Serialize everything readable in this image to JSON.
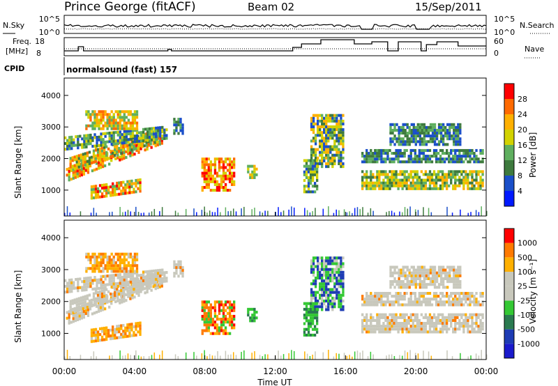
{
  "header": {
    "title": "Prince George (fitACF)",
    "beam": "Beam 02",
    "date": "15/Sep/2011"
  },
  "noise_panel": {
    "left_label": "N.Sky",
    "right_label": "N.Search",
    "left_ticks": [
      "10^5",
      "10^0"
    ],
    "right_ticks": [
      "10^5",
      "10^0"
    ]
  },
  "freq_panel": {
    "left_label_1": "Freq.",
    "left_label_2": "[MHz]",
    "left_ticks": [
      "18",
      "8"
    ],
    "right_label": "Nave",
    "right_ticks": [
      "60",
      "0"
    ]
  },
  "cpid": {
    "label": "CPID",
    "value": "normalsound (fast) 157"
  },
  "colors": {
    "power": [
      "#0019ff",
      "#1a4fc9",
      "#3e7a3e",
      "#5faf5f",
      "#d2d200",
      "#ffb000",
      "#ff6a00",
      "#ff0000"
    ],
    "velocity": [
      "#ff0000",
      "#ff7a00",
      "#ffb000",
      "#c8c8bc",
      "#c8c8bc",
      "#34c834",
      "#2a7a50",
      "#1e3cb4",
      "#1a1acc"
    ]
  },
  "chart_data": [
    {
      "type": "heatmap",
      "name": "power",
      "xlabel": "",
      "ylabel": "Slant Range [km]",
      "x_ticks": [
        "00:00",
        "04:00",
        "08:00",
        "12:00",
        "16:00",
        "20:00",
        "00:00"
      ],
      "y_ticks": [
        "1000",
        "2000",
        "3000",
        "4000"
      ],
      "colorbar_label": "Power [dB]",
      "colorbar_ticks": [
        "4",
        "8",
        "12",
        "16",
        "20",
        "24",
        "28"
      ],
      "xlim": [
        0,
        24
      ],
      "ylim": [
        180,
        4550
      ]
    },
    {
      "type": "heatmap",
      "name": "velocity",
      "xlabel": "Time UT",
      "ylabel": "Slant Range [km]",
      "x_ticks": [
        "00:00",
        "04:00",
        "08:00",
        "12:00",
        "16:00",
        "20:00",
        "00:00"
      ],
      "y_ticks": [
        "1000",
        "2000",
        "3000",
        "4000"
      ],
      "colorbar_label": "Velocity [m s⁻¹]",
      "colorbar_ticks": [
        "1000",
        "500",
        "100",
        "25",
        "-25",
        "-100",
        "-500",
        "-1000"
      ],
      "xlim": [
        0,
        24
      ],
      "ylim": [
        180,
        4550
      ]
    }
  ]
}
